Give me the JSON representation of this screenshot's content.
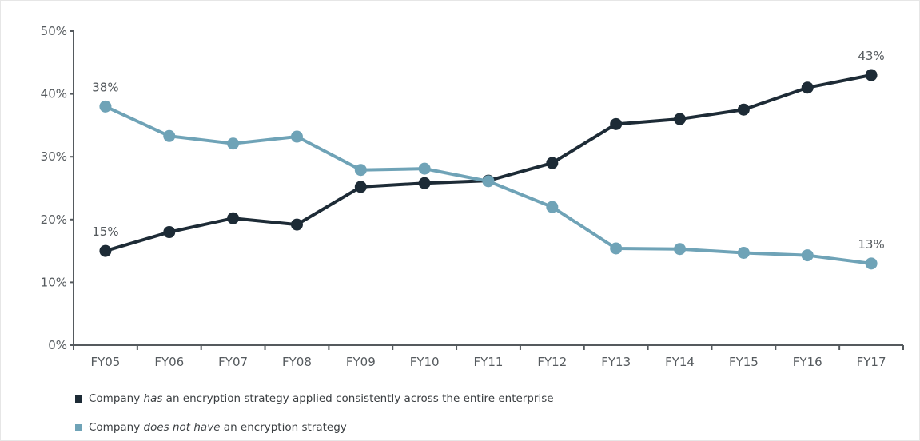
{
  "chart_data": {
    "type": "line",
    "categories": [
      "FY05",
      "FY06",
      "FY07",
      "FY08",
      "FY09",
      "FY10",
      "FY11",
      "FY12",
      "FY13",
      "FY14",
      "FY15",
      "FY16",
      "FY17"
    ],
    "ylim": [
      0,
      50
    ],
    "yticks": [
      0,
      10,
      20,
      30,
      40,
      50
    ],
    "ytick_labels": [
      "0%",
      "10%",
      "20%",
      "30%",
      "40%",
      "50%"
    ],
    "series": [
      {
        "color": "#1d2b36",
        "values": [
          15,
          18,
          20.2,
          19.2,
          25.2,
          25.8,
          26.2,
          29,
          35.2,
          36,
          37.5,
          41,
          43
        ],
        "end_labels": {
          "first": "15%",
          "last": "43%"
        }
      },
      {
        "color": "#6fa3b7",
        "values": [
          38,
          33.3,
          32.1,
          33.2,
          27.9,
          28.1,
          26.1,
          22,
          15.4,
          15.3,
          14.7,
          14.3,
          13
        ],
        "end_labels": {
          "first": "38%",
          "last": "13%"
        }
      }
    ],
    "legend": [
      {
        "pre": "Company ",
        "em": "has",
        "post": " an encryption strategy applied consistently across the entire enterprise",
        "color": "#1d2b36"
      },
      {
        "pre": "Company ",
        "em": "does not have",
        "post": " an encryption strategy",
        "color": "#6fa3b7"
      }
    ],
    "legend_position": "bottom-left",
    "grid": false
  }
}
